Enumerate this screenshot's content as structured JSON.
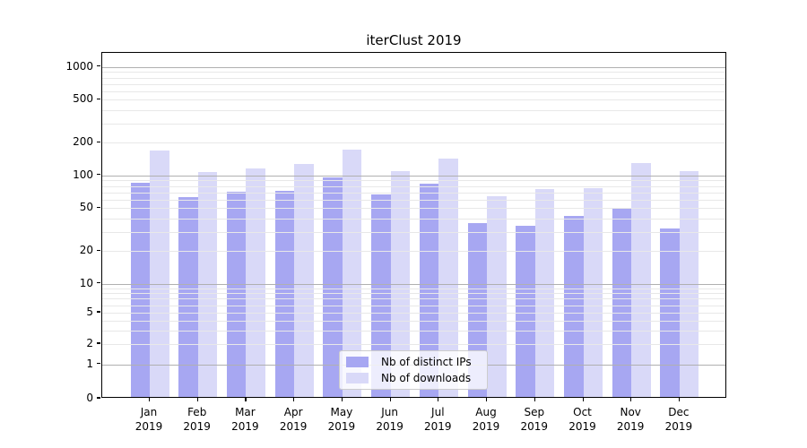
{
  "chart_data": {
    "type": "bar",
    "title": "iterClust 2019",
    "xlabel": "",
    "ylabel": "",
    "yscale": "symlog",
    "ylim": [
      0,
      1100
    ],
    "yticks": [
      0,
      1,
      2,
      5,
      10,
      20,
      50,
      100,
      200,
      500,
      1000
    ],
    "grid": "horizontal, major gridlines at powers of 10, faint minor log gridlines",
    "legend_position": "lower center inside plot",
    "categories": [
      "Jan 2019",
      "Feb 2019",
      "Mar 2019",
      "Apr 2019",
      "May 2019",
      "Jun 2019",
      "Jul 2019",
      "Aug 2019",
      "Sep 2019",
      "Oct 2019",
      "Nov 2019",
      "Dec 2019"
    ],
    "series": [
      {
        "name": "Nb of distinct IPs",
        "color": "#a7a7f2",
        "values": [
          82,
          61,
          68,
          69,
          92,
          64,
          81,
          35,
          33,
          41,
          48,
          31
        ]
      },
      {
        "name": "Nb of downloads",
        "color": "#d9d9f8",
        "values": [
          164,
          103,
          111,
          124,
          168,
          105,
          138,
          62,
          72,
          74,
          125,
          106
        ]
      }
    ]
  },
  "colors": {
    "major_grid": "#b0b0b0",
    "minor_grid": "#e8e8e8",
    "axis": "#000000",
    "background": "#ffffff",
    "text": "#000000",
    "legend_border": "#cccccc"
  }
}
